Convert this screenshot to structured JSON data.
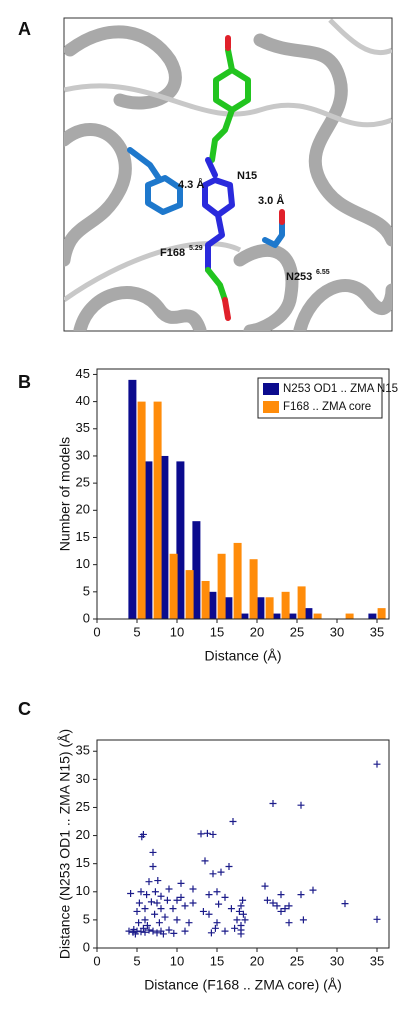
{
  "panel_a": {
    "label": "A",
    "annotations": [
      {
        "text": "4.3 Å"
      },
      {
        "text": "N15"
      },
      {
        "text": "3.0 Å"
      },
      {
        "text": "F168",
        "superscript": "5.29"
      },
      {
        "text": "N253",
        "superscript": "6.55"
      }
    ]
  },
  "chart_data": [
    {
      "type": "bar",
      "panel_label": "B",
      "x_label": "Distance (Å)",
      "y_label": "Number of models",
      "x": [
        5,
        7,
        9,
        11,
        13,
        15,
        17,
        19,
        21,
        23,
        25,
        27,
        29,
        31,
        33,
        35
      ],
      "series": [
        {
          "name": "N253 OD1 .. ZMA N15",
          "color": "#0b0b8e",
          "values": [
            44,
            29,
            30,
            29,
            18,
            5,
            4,
            1,
            4,
            1,
            1,
            2,
            0,
            0,
            0,
            1
          ]
        },
        {
          "name": "F168 .. ZMA core",
          "color": "#ff8c0a",
          "values": [
            40,
            40,
            12,
            9,
            7,
            12,
            14,
            11,
            4,
            5,
            6,
            1,
            0,
            1,
            0,
            2
          ]
        }
      ],
      "xlim": [
        0,
        36.5
      ],
      "xticks": [
        0,
        5,
        10,
        15,
        20,
        25,
        30,
        35
      ],
      "ylim": [
        0,
        46
      ],
      "yticks": [
        0,
        5,
        10,
        15,
        20,
        25,
        30,
        35,
        40,
        45
      ],
      "legend": "upper right"
    },
    {
      "type": "scatter",
      "panel_label": "C",
      "x_label": "Distance (F168 .. ZMA core) (Å)",
      "y_label": "Distance (N253 OD1 .. ZMA N15) (Å)",
      "color": "#1c1c8a",
      "x": [
        4,
        4.2,
        4.5,
        4.6,
        4.8,
        5,
        5,
        5.2,
        5.3,
        5.5,
        5.5,
        5.6,
        5.8,
        5.8,
        6,
        6,
        6,
        6.2,
        6.3,
        6.5,
        6.5,
        6.8,
        7,
        7,
        7,
        7.2,
        7.3,
        7.5,
        7.5,
        7.6,
        7.8,
        8,
        8,
        8,
        8.3,
        8.5,
        8.8,
        9,
        9,
        9.5,
        9.6,
        10,
        10,
        10.5,
        10.5,
        11,
        11,
        11.5,
        12,
        12,
        13,
        13.3,
        13.5,
        13.8,
        14,
        14,
        14.3,
        14.5,
        14.5,
        14.8,
        15,
        15,
        15.2,
        15.5,
        16,
        16,
        16.5,
        16.8,
        17,
        17.2,
        17.5,
        17.8,
        18,
        18,
        18,
        18.2,
        18.3,
        18.5,
        18,
        21,
        21.3,
        22,
        22,
        22.5,
        23,
        23,
        23.5,
        24,
        24,
        25.5,
        25.5,
        25.8,
        27,
        31,
        35,
        35
      ],
      "values": [
        3,
        9.7,
        2.8,
        3.3,
        2.5,
        3,
        6.5,
        4.5,
        8,
        2.9,
        10,
        19.8,
        20.2,
        3.5,
        7,
        5,
        2.8,
        9.5,
        4,
        3.2,
        11.8,
        8.2,
        14.5,
        17,
        3,
        6,
        10,
        2.7,
        8,
        12,
        4.5,
        3,
        7,
        9.2,
        2.5,
        5.5,
        8.5,
        3.2,
        10.5,
        7,
        2.6,
        8.5,
        5,
        9,
        11.5,
        7.5,
        3,
        4.5,
        10.5,
        8,
        20.3,
        6.5,
        15.5,
        20.4,
        9.5,
        6,
        2.7,
        20.2,
        13.2,
        3.5,
        10,
        4.5,
        7.8,
        13.5,
        9,
        3,
        14.5,
        7,
        22.5,
        3.5,
        5,
        6.5,
        7.5,
        4,
        2.5,
        8.5,
        6,
        5,
        3.2,
        11,
        8.5,
        25.7,
        8,
        7.5,
        9.5,
        6.5,
        7,
        4.5,
        7.5,
        25.4,
        9.5,
        5,
        10.3,
        7.9,
        32.7,
        5.1
      ],
      "xlim": [
        0,
        36.5
      ],
      "xticks": [
        0,
        5,
        10,
        15,
        20,
        25,
        30,
        35
      ],
      "ylim": [
        0,
        37
      ],
      "yticks": [
        0,
        5,
        10,
        15,
        20,
        25,
        30,
        35
      ]
    }
  ]
}
